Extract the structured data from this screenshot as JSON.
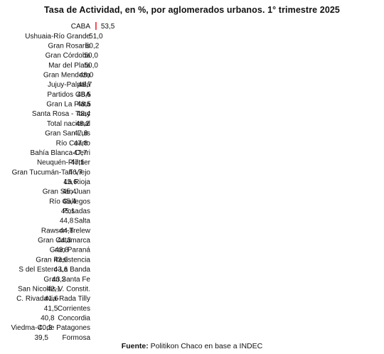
{
  "chart_data": {
    "type": "bar",
    "orientation": "horizontal",
    "title": "Tasa de Actividad, en %, por aglomerados urbanos. 1° trimestre 2025",
    "categories": [
      "CABA",
      "Ushuaia-Río Grande",
      "Gran Rosario",
      "Gran Córdoba",
      "Mar del Plata",
      "Gran Mendoza",
      "Jujuy-Palpalá",
      "Partidos GBA",
      "Gran La Plata",
      "Santa Rosa - Toay",
      "Total nacional",
      "Gran San Luis",
      "Río Cuarto",
      "Bahía Blanca-Cerri",
      "Neuquén-Plottier",
      "Gran Tucumán-Tafí Viejo",
      "La Rioja",
      "Gran San Juan",
      "Río Gallegos",
      "Posadas",
      "Salta",
      "Rawson-Trelew",
      "Gran Catamarca",
      "Gran Paraná",
      "Gran Resistencia",
      "S del Estero-La Banda",
      "Gran Santa Fe",
      "San Nicolás-V. Constit.",
      "C. Rivadavia-Rada Tilly",
      "Corrientes",
      "Concordia",
      "Viedma-C. de Patagones",
      "Formosa"
    ],
    "values": [
      53.5,
      51.0,
      50.2,
      50.0,
      50.0,
      49.0,
      48.7,
      48.5,
      48.5,
      48.4,
      48.2,
      47.8,
      47.8,
      47.7,
      47.1,
      46.7,
      45.6,
      45.4,
      45.4,
      45.1,
      44.8,
      44.8,
      44.3,
      43.8,
      43.6,
      43.6,
      43.2,
      42.1,
      41.6,
      41.5,
      40.8,
      40.3,
      39.5
    ],
    "value_labels": [
      "53,5",
      "51,0",
      "50,2",
      "50,0",
      "50,0",
      "49,0",
      "48,7",
      "48,5",
      "48,5",
      "48,4",
      "48,2",
      "47,8",
      "47,8",
      "47,7",
      "47,1",
      "46,7",
      "45,6",
      "45,4",
      "45,4",
      "45,1",
      "44,8",
      "44,8",
      "44,3",
      "43,8",
      "43,6",
      "43,6",
      "43,2",
      "42,1",
      "41,6",
      "41,5",
      "40,8",
      "40,3",
      "39,5"
    ],
    "highlight_category": "Total nacional",
    "bar_color": "#f5424a",
    "highlight_color": "#fcc21c",
    "grid": false,
    "legend": "none"
  },
  "source": {
    "label": "Fuente:",
    "text": " Politikon Chaco en base a INDEC"
  }
}
